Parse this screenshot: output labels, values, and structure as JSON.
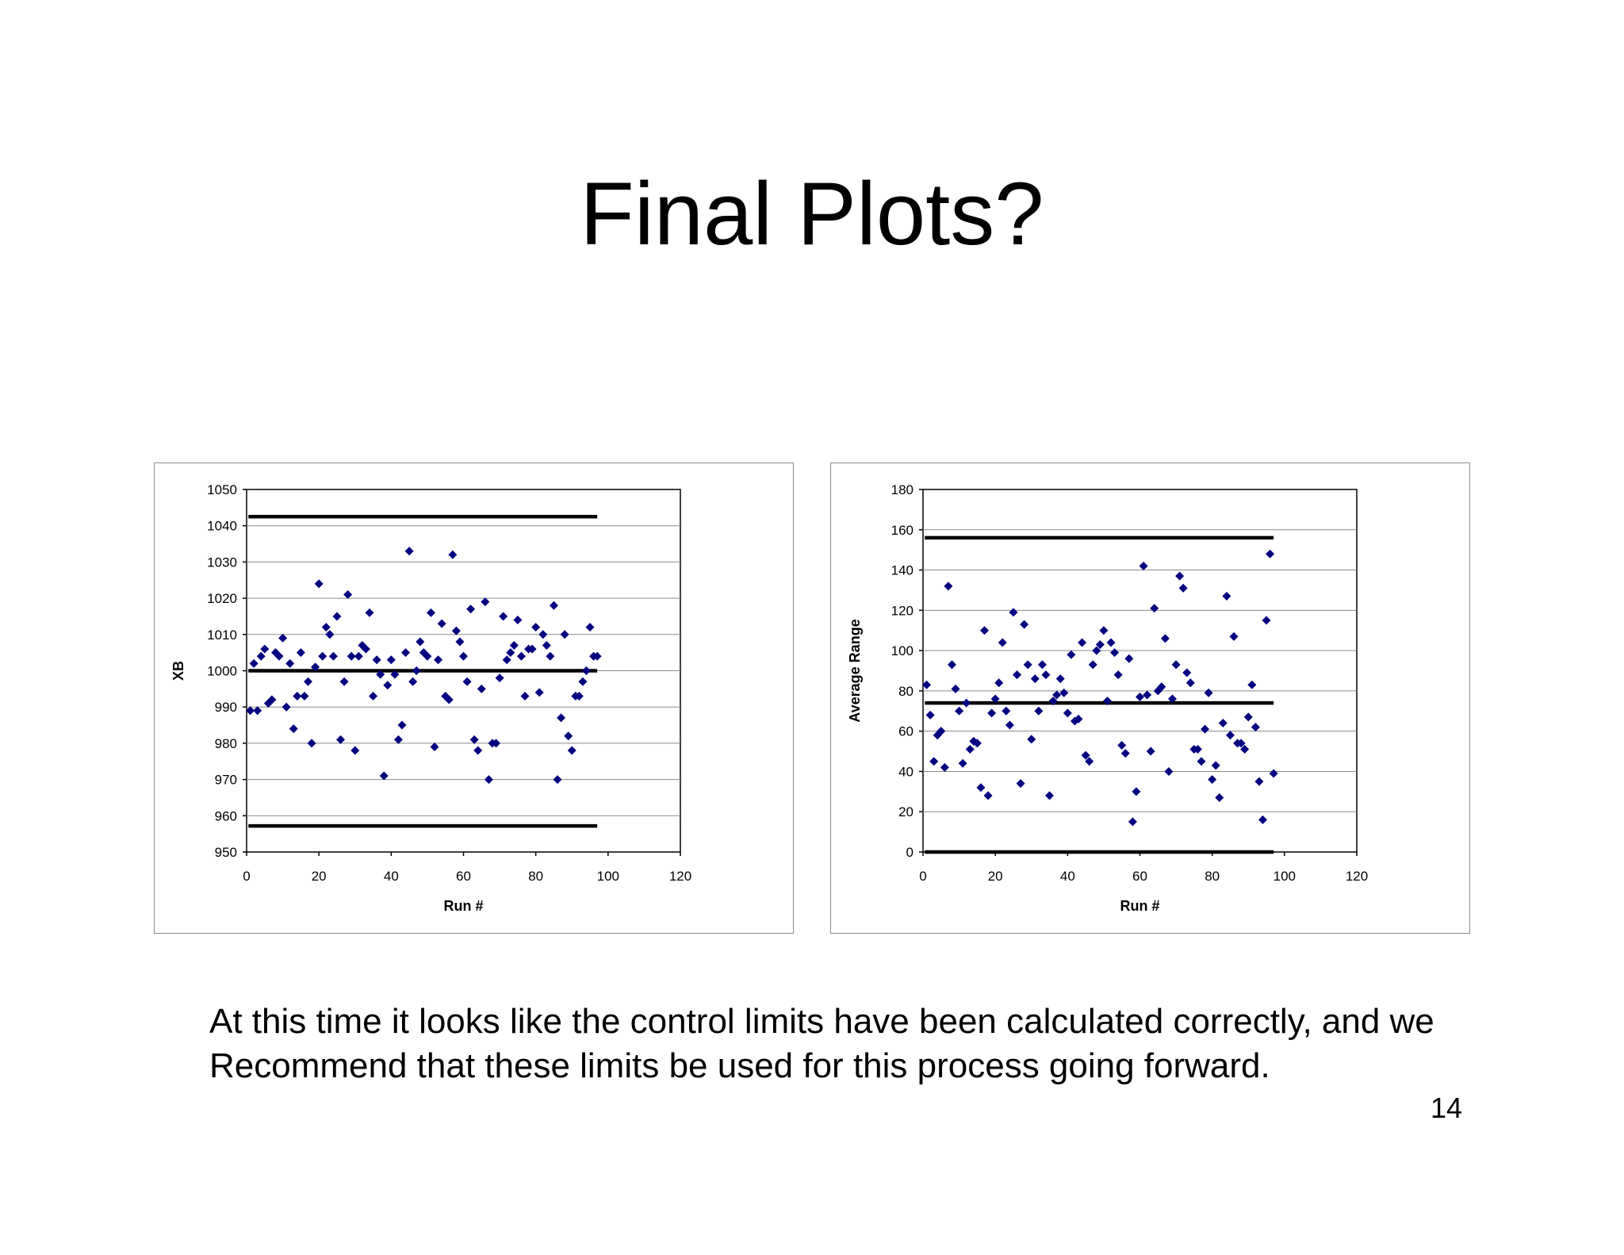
{
  "slide": {
    "title": "Final Plots?",
    "caption_line1": "At this time it looks like the control limits have been calculated correctly, and we",
    "caption_line2": "Recommend that these limits be used for this process going forward.",
    "page_number": "14"
  },
  "chart_data": [
    {
      "type": "scatter",
      "title": "",
      "xlabel": "Run #",
      "ylabel": "XB",
      "xlim": [
        0,
        120
      ],
      "ylim": [
        950,
        1050
      ],
      "x_ticks": [
        0,
        20,
        40,
        60,
        80,
        100,
        120
      ],
      "y_ticks": [
        950,
        960,
        970,
        980,
        990,
        1000,
        1010,
        1020,
        1030,
        1040,
        1050
      ],
      "grid": "horizontal",
      "legend": "none",
      "marker_color": "#000080",
      "line_color": "#000000",
      "control_lines": [
        {
          "y": 1042.5,
          "x_start": 0.5,
          "x_end": 97
        },
        {
          "y": 1000,
          "x_start": 0.5,
          "x_end": 97
        },
        {
          "y": 957.2,
          "x_start": 0.5,
          "x_end": 97
        }
      ],
      "points": [
        [
          1,
          989
        ],
        [
          2,
          1002
        ],
        [
          3,
          989
        ],
        [
          4,
          1004
        ],
        [
          5,
          1006
        ],
        [
          6,
          991
        ],
        [
          7,
          992
        ],
        [
          8,
          1005
        ],
        [
          9,
          1004
        ],
        [
          10,
          1009
        ],
        [
          11,
          990
        ],
        [
          12,
          1002
        ],
        [
          13,
          984
        ],
        [
          14,
          993
        ],
        [
          15,
          1005
        ],
        [
          16,
          993
        ],
        [
          17,
          997
        ],
        [
          18,
          980
        ],
        [
          19,
          1001
        ],
        [
          20,
          1024
        ],
        [
          21,
          1004
        ],
        [
          22,
          1012
        ],
        [
          23,
          1010
        ],
        [
          24,
          1004
        ],
        [
          25,
          1015
        ],
        [
          26,
          981
        ],
        [
          27,
          997
        ],
        [
          28,
          1021
        ],
        [
          29,
          1004
        ],
        [
          30,
          978
        ],
        [
          31,
          1004
        ],
        [
          32,
          1007
        ],
        [
          33,
          1006
        ],
        [
          34,
          1016
        ],
        [
          35,
          993
        ],
        [
          36,
          1003
        ],
        [
          37,
          999
        ],
        [
          38,
          971
        ],
        [
          39,
          996
        ],
        [
          40,
          1003
        ],
        [
          41,
          999
        ],
        [
          42,
          981
        ],
        [
          43,
          985
        ],
        [
          44,
          1005
        ],
        [
          45,
          1033
        ],
        [
          46,
          997
        ],
        [
          47,
          1000
        ],
        [
          48,
          1008
        ],
        [
          49,
          1005
        ],
        [
          50,
          1004
        ],
        [
          51,
          1016
        ],
        [
          52,
          979
        ],
        [
          53,
          1003
        ],
        [
          54,
          1013
        ],
        [
          55,
          993
        ],
        [
          56,
          992
        ],
        [
          57,
          1032
        ],
        [
          58,
          1011
        ],
        [
          59,
          1008
        ],
        [
          60,
          1004
        ],
        [
          61,
          997
        ],
        [
          62,
          1017
        ],
        [
          63,
          981
        ],
        [
          64,
          978
        ],
        [
          65,
          995
        ],
        [
          66,
          1019
        ],
        [
          67,
          970
        ],
        [
          68,
          980
        ],
        [
          69,
          980
        ],
        [
          70,
          998
        ],
        [
          71,
          1015
        ],
        [
          72,
          1003
        ],
        [
          73,
          1005
        ],
        [
          74,
          1007
        ],
        [
          75,
          1014
        ],
        [
          76,
          1004
        ],
        [
          77,
          993
        ],
        [
          78,
          1006
        ],
        [
          79,
          1006
        ],
        [
          80,
          1012
        ],
        [
          81,
          994
        ],
        [
          82,
          1010
        ],
        [
          83,
          1007
        ],
        [
          84,
          1004
        ],
        [
          85,
          1018
        ],
        [
          86,
          970
        ],
        [
          87,
          987
        ],
        [
          88,
          1010
        ],
        [
          89,
          982
        ],
        [
          90,
          978
        ],
        [
          91,
          993
        ],
        [
          92,
          993
        ],
        [
          93,
          997
        ],
        [
          94,
          1000
        ],
        [
          95,
          1012
        ],
        [
          96,
          1004
        ],
        [
          97,
          1004
        ]
      ]
    },
    {
      "type": "scatter",
      "title": "",
      "xlabel": "Run #",
      "ylabel": "Average Range",
      "xlim": [
        0,
        120
      ],
      "ylim": [
        0,
        180
      ],
      "x_ticks": [
        0,
        20,
        40,
        60,
        80,
        100,
        120
      ],
      "y_ticks": [
        0,
        20,
        40,
        60,
        80,
        100,
        120,
        140,
        160,
        180
      ],
      "grid": "horizontal",
      "legend": "none",
      "marker_color": "#000080",
      "line_color": "#000000",
      "control_lines": [
        {
          "y": 156,
          "x_start": 0.5,
          "x_end": 97
        },
        {
          "y": 74,
          "x_start": 0.5,
          "x_end": 97
        },
        {
          "y": 0,
          "x_start": 0.5,
          "x_end": 97
        }
      ],
      "points": [
        [
          1,
          83
        ],
        [
          2,
          68
        ],
        [
          3,
          45
        ],
        [
          4,
          58
        ],
        [
          5,
          60
        ],
        [
          6,
          42
        ],
        [
          7,
          132
        ],
        [
          8,
          93
        ],
        [
          9,
          81
        ],
        [
          10,
          70
        ],
        [
          11,
          44
        ],
        [
          12,
          74
        ],
        [
          13,
          51
        ],
        [
          14,
          55
        ],
        [
          15,
          54
        ],
        [
          16,
          32
        ],
        [
          17,
          110
        ],
        [
          18,
          28
        ],
        [
          19,
          69
        ],
        [
          20,
          76
        ],
        [
          21,
          84
        ],
        [
          22,
          104
        ],
        [
          23,
          70
        ],
        [
          24,
          63
        ],
        [
          25,
          119
        ],
        [
          26,
          88
        ],
        [
          27,
          34
        ],
        [
          28,
          113
        ],
        [
          29,
          93
        ],
        [
          30,
          56
        ],
        [
          31,
          86
        ],
        [
          32,
          70
        ],
        [
          33,
          93
        ],
        [
          34,
          88
        ],
        [
          35,
          28
        ],
        [
          36,
          75
        ],
        [
          37,
          78
        ],
        [
          38,
          86
        ],
        [
          39,
          79
        ],
        [
          40,
          69
        ],
        [
          41,
          98
        ],
        [
          42,
          65
        ],
        [
          43,
          66
        ],
        [
          44,
          104
        ],
        [
          45,
          48
        ],
        [
          46,
          45
        ],
        [
          47,
          93
        ],
        [
          48,
          100
        ],
        [
          49,
          103
        ],
        [
          50,
          110
        ],
        [
          51,
          75
        ],
        [
          52,
          104
        ],
        [
          53,
          99
        ],
        [
          54,
          88
        ],
        [
          55,
          53
        ],
        [
          56,
          49
        ],
        [
          57,
          96
        ],
        [
          58,
          15
        ],
        [
          59,
          30
        ],
        [
          60,
          77
        ],
        [
          61,
          142
        ],
        [
          62,
          78
        ],
        [
          63,
          50
        ],
        [
          64,
          121
        ],
        [
          65,
          80
        ],
        [
          66,
          82
        ],
        [
          67,
          106
        ],
        [
          68,
          40
        ],
        [
          69,
          76
        ],
        [
          70,
          93
        ],
        [
          71,
          137
        ],
        [
          72,
          131
        ],
        [
          73,
          89
        ],
        [
          74,
          84
        ],
        [
          75,
          51
        ],
        [
          76,
          51
        ],
        [
          77,
          45
        ],
        [
          78,
          61
        ],
        [
          79,
          79
        ],
        [
          80,
          36
        ],
        [
          81,
          43
        ],
        [
          82,
          27
        ],
        [
          83,
          64
        ],
        [
          84,
          127
        ],
        [
          85,
          58
        ],
        [
          86,
          107
        ],
        [
          87,
          54
        ],
        [
          88,
          54
        ],
        [
          89,
          51
        ],
        [
          90,
          67
        ],
        [
          91,
          83
        ],
        [
          92,
          62
        ],
        [
          93,
          35
        ],
        [
          94,
          16
        ],
        [
          95,
          115
        ],
        [
          96,
          148
        ],
        [
          97,
          39
        ]
      ]
    }
  ]
}
